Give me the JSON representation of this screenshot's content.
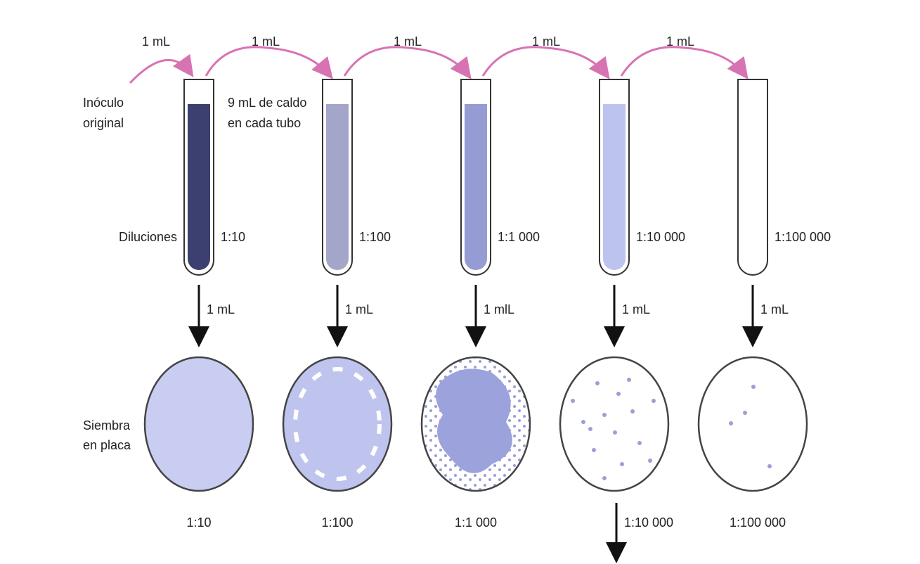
{
  "transfers": [
    "1 mL",
    "1 mL",
    "1 mL",
    "1 mL",
    "1 mL"
  ],
  "inoculum": [
    "Inóculo",
    "original"
  ],
  "broth_note": [
    "9 mL de caldo",
    "en cada tubo"
  ],
  "dilutions_label": "Diluciones",
  "tubes": [
    {
      "label": "1:10",
      "plating_volume": "1 mL"
    },
    {
      "label": "1:100",
      "plating_volume": "1 mL"
    },
    {
      "label": "1:1 000",
      "plating_volume": "1 mlL"
    },
    {
      "label": "1:10 000",
      "plating_volume": "1 mL"
    },
    {
      "label": "1:100 000",
      "plating_volume": "1 mL"
    }
  ],
  "plating_label": [
    "Siembra",
    "en placa"
  ],
  "plates": [
    {
      "label": "1:10"
    },
    {
      "label": "1:100"
    },
    {
      "label": "1:1 000"
    },
    {
      "label": "1:10 000"
    },
    {
      "label": "1:100 000"
    }
  ]
}
